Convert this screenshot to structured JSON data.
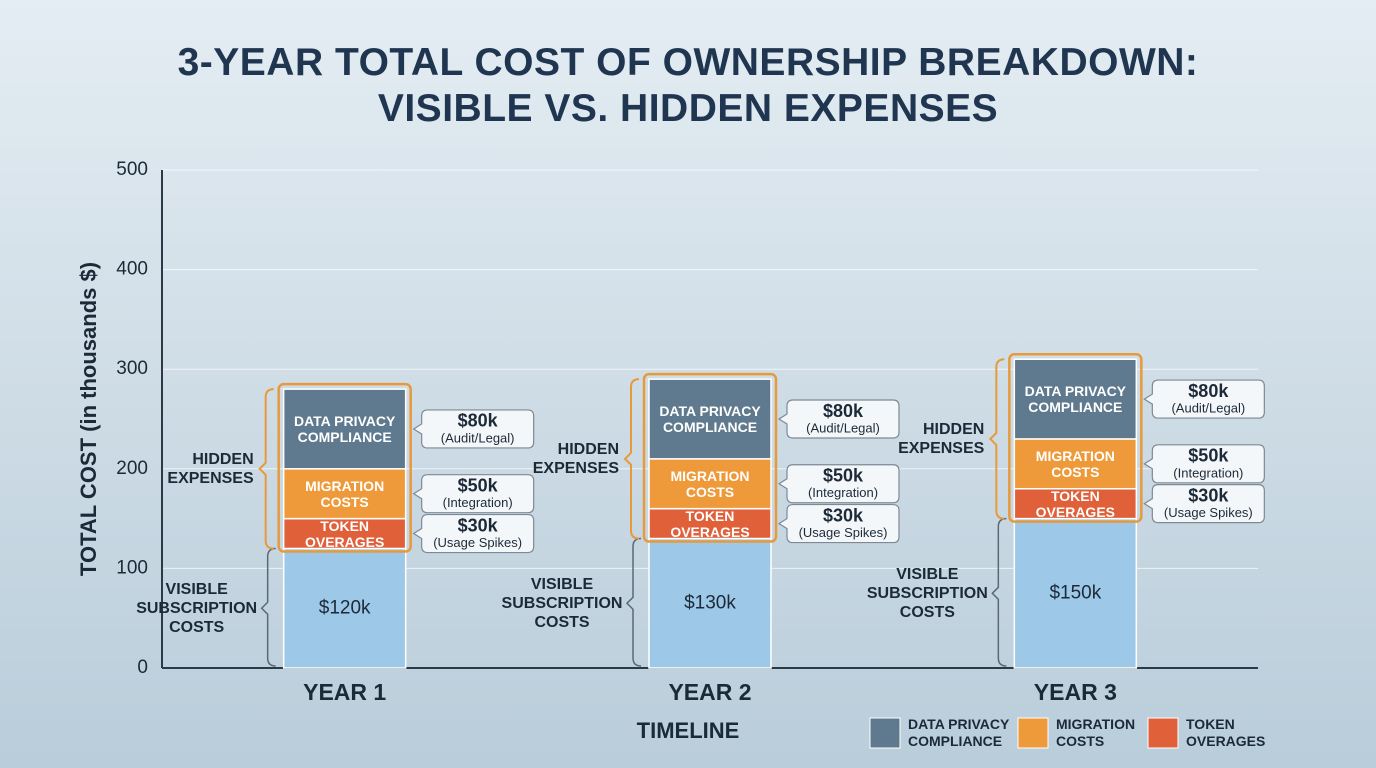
{
  "chart_data": {
    "type": "stacked_bar",
    "title": "3-YEAR TOTAL COST OF OWNERSHIP BREAKDOWN: VISIBLE VS. HIDDEN EXPENSES",
    "ylabel": "TOTAL COST (in thousands $)",
    "xlabel": "TIMELINE",
    "hidden_label": "HIDDEN EXPENSES",
    "categories": [
      "YEAR 1",
      "YEAR 2",
      "YEAR 3"
    ],
    "series": [
      {
        "name": "VISIBLE SUBSCRIPTION COSTS",
        "color": "#9dc8e8",
        "values": [
          120,
          130,
          150
        ],
        "value_labels": [
          "$120k",
          "$130k",
          "$150k"
        ],
        "in_legend": false,
        "hidden": false
      },
      {
        "name": "TOKEN OVERAGES",
        "color": "#e0603a",
        "values": [
          30,
          30,
          30
        ],
        "value_labels": [
          "$30k",
          "$30k",
          "$30k"
        ],
        "detail": "(Usage Spikes)",
        "in_legend": true,
        "hidden": true
      },
      {
        "name": "MIGRATION COSTS",
        "color": "#ef9a3a",
        "values": [
          50,
          50,
          50
        ],
        "value_labels": [
          "$50k",
          "$50k",
          "$50k"
        ],
        "detail": "(Integration)",
        "in_legend": true,
        "hidden": true
      },
      {
        "name": "DATA PRIVACY COMPLIANCE",
        "color": "#5f7a8e",
        "values": [
          80,
          80,
          80
        ],
        "value_labels": [
          "$80k",
          "$80k",
          "$80k"
        ],
        "detail": "(Audit/Legal)",
        "in_legend": true,
        "hidden": true
      }
    ],
    "ylim": [
      0,
      500
    ],
    "yticks": [
      0,
      100,
      200,
      300,
      400,
      500
    ],
    "grid": true
  }
}
